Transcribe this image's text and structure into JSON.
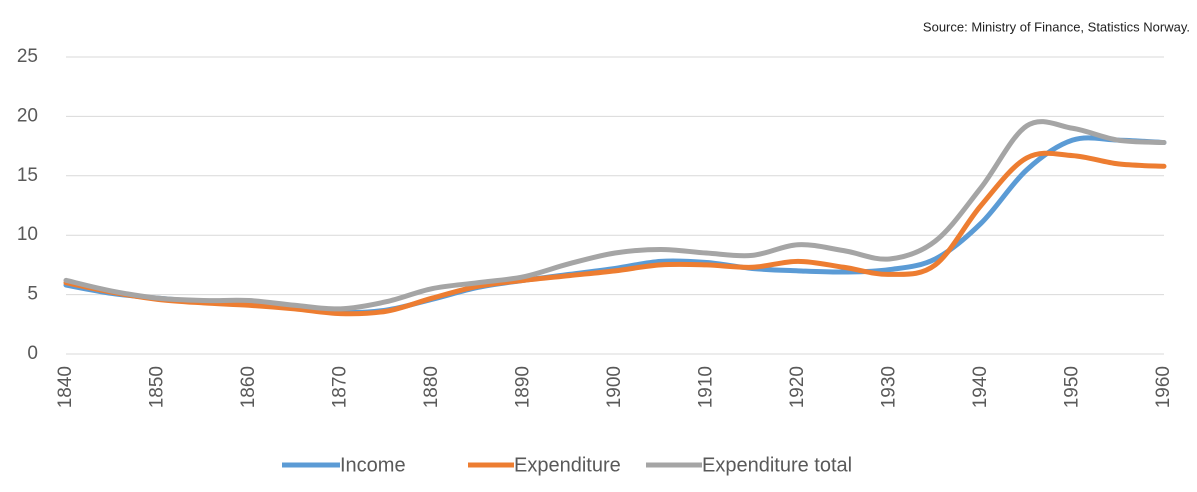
{
  "chart_data": {
    "type": "line",
    "source": "Source: Ministry of Finance, Statistics Norway.",
    "x": [
      1840,
      1845,
      1850,
      1855,
      1860,
      1865,
      1870,
      1875,
      1880,
      1885,
      1890,
      1895,
      1900,
      1905,
      1910,
      1915,
      1920,
      1925,
      1930,
      1935,
      1940,
      1945,
      1950,
      1955,
      1960
    ],
    "series": [
      {
        "name": "Income",
        "color": "#5b9bd5",
        "values": [
          5.8,
          5.1,
          4.7,
          4.4,
          4.2,
          3.9,
          3.5,
          3.7,
          4.6,
          5.6,
          6.2,
          6.7,
          7.2,
          7.8,
          7.7,
          7.2,
          7.0,
          6.9,
          7.1,
          8.0,
          11.0,
          15.5,
          18.0,
          18.0,
          17.8
        ]
      },
      {
        "name": "Expenditure",
        "color": "#ed7d31",
        "values": [
          6.0,
          5.2,
          4.6,
          4.3,
          4.1,
          3.8,
          3.4,
          3.6,
          4.7,
          5.7,
          6.2,
          6.6,
          7.0,
          7.5,
          7.5,
          7.3,
          7.8,
          7.3,
          6.7,
          7.5,
          12.5,
          16.5,
          16.7,
          16.0,
          15.8
        ]
      },
      {
        "name": "Expenditure total",
        "color": "#a5a5a5",
        "values": [
          6.2,
          5.3,
          4.7,
          4.5,
          4.5,
          4.1,
          3.8,
          4.4,
          5.5,
          6.0,
          6.5,
          7.6,
          8.5,
          8.8,
          8.5,
          8.3,
          9.2,
          8.7,
          8.0,
          9.5,
          14.0,
          19.2,
          19.0,
          18.0,
          17.8
        ]
      }
    ],
    "xlim": [
      1840,
      1960
    ],
    "xticks": [
      1840,
      1850,
      1860,
      1870,
      1880,
      1890,
      1900,
      1910,
      1920,
      1930,
      1940,
      1950,
      1960
    ],
    "ylim": [
      0,
      25
    ],
    "yticks": [
      0,
      5,
      10,
      15,
      20,
      25
    ],
    "grid": true,
    "legend": "bottom"
  }
}
